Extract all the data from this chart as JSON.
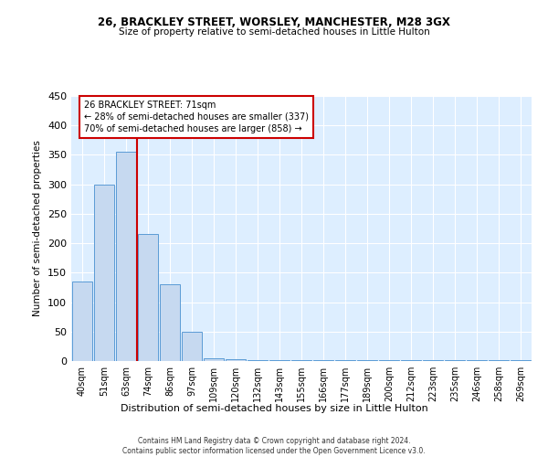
{
  "title1": "26, BRACKLEY STREET, WORSLEY, MANCHESTER, M28 3GX",
  "title2": "Size of property relative to semi-detached houses in Little Hulton",
  "xlabel": "Distribution of semi-detached houses by size in Little Hulton",
  "ylabel": "Number of semi-detached properties",
  "categories": [
    "40sqm",
    "51sqm",
    "63sqm",
    "74sqm",
    "86sqm",
    "97sqm",
    "109sqm",
    "120sqm",
    "132sqm",
    "143sqm",
    "155sqm",
    "166sqm",
    "177sqm",
    "189sqm",
    "200sqm",
    "212sqm",
    "223sqm",
    "235sqm",
    "246sqm",
    "258sqm",
    "269sqm"
  ],
  "values": [
    135,
    300,
    355,
    215,
    130,
    50,
    5,
    3,
    2,
    2,
    1,
    1,
    1,
    1,
    1,
    1,
    1,
    1,
    1,
    1,
    1
  ],
  "bar_color": "#c6d9f0",
  "bar_edge_color": "#5b9bd5",
  "vline_color": "#cc0000",
  "vline_x": 2.5,
  "annotation_line1": "26 BRACKLEY STREET: 71sqm",
  "annotation_line2": "← 28% of semi-detached houses are smaller (337)",
  "annotation_line3": "70% of semi-detached houses are larger (858) →",
  "annotation_box_color": "#cc0000",
  "ylim": [
    0,
    450
  ],
  "yticks": [
    0,
    50,
    100,
    150,
    200,
    250,
    300,
    350,
    400,
    450
  ],
  "background_color": "#ddeeff",
  "grid_color": "#ffffff",
  "footer1": "Contains HM Land Registry data © Crown copyright and database right 2024.",
  "footer2": "Contains public sector information licensed under the Open Government Licence v3.0."
}
